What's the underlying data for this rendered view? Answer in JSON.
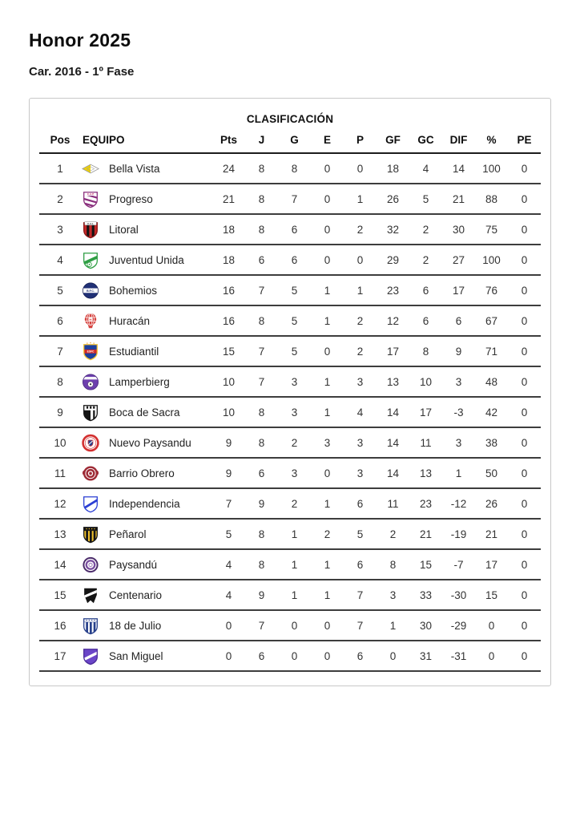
{
  "page": {
    "title": "Honor 2025",
    "subtitle": "Car. 2016 - 1º Fase"
  },
  "table": {
    "caption": "CLASIFICACIÓN",
    "columns": [
      "Pos",
      "EQUIPO",
      "Pts",
      "J",
      "G",
      "E",
      "P",
      "GF",
      "GC",
      "DIF",
      "%",
      "PE"
    ],
    "rows": [
      {
        "pos": 1,
        "team": "Bella Vista",
        "crest": {
          "icon": "bella-vista-crest-icon",
          "shape": "diamond",
          "colors": [
            "#f2d400",
            "#ffffff",
            "#9a9a9a"
          ]
        },
        "pts": 24,
        "j": 8,
        "g": 8,
        "e": 0,
        "p": 0,
        "gf": 18,
        "gc": 4,
        "dif": 14,
        "pct": 100,
        "pe": 0
      },
      {
        "pos": 2,
        "team": "Progreso",
        "crest": {
          "icon": "progreso-crest-icon",
          "shape": "shield-diag-stripes",
          "colors": [
            "#ffffff",
            "#8a2f7d",
            "#c2185b"
          ],
          "text": "C.A.P"
        },
        "pts": 21,
        "j": 8,
        "g": 7,
        "e": 0,
        "p": 1,
        "gf": 26,
        "gc": 5,
        "dif": 21,
        "pct": 88,
        "pe": 0
      },
      {
        "pos": 3,
        "team": "Litoral",
        "crest": {
          "icon": "litoral-crest-icon",
          "shape": "shield-vstripes-banner",
          "colors": [
            "#c62828",
            "#141414",
            "#ffffff",
            "#8c1515"
          ],
          "text": "C.A.L"
        },
        "pts": 18,
        "j": 8,
        "g": 6,
        "e": 0,
        "p": 2,
        "gf": 32,
        "gc": 2,
        "dif": 30,
        "pct": 75,
        "pe": 0
      },
      {
        "pos": 4,
        "team": "Juventud Unida",
        "crest": {
          "icon": "juventud-unida-crest-icon",
          "shape": "shield-ball",
          "colors": [
            "#ffffff",
            "#2f9e44"
          ]
        },
        "pts": 18,
        "j": 6,
        "g": 6,
        "e": 0,
        "p": 0,
        "gf": 29,
        "gc": 2,
        "dif": 27,
        "pct": 100,
        "pe": 0
      },
      {
        "pos": 5,
        "team": "Bohemios",
        "crest": {
          "icon": "bohemios-crest-icon",
          "shape": "circle-band",
          "colors": [
            "#203075",
            "#ffffff"
          ],
          "text": "B.F.C."
        },
        "pts": 16,
        "j": 7,
        "g": 5,
        "e": 1,
        "p": 1,
        "gf": 23,
        "gc": 6,
        "dif": 17,
        "pct": 76,
        "pe": 0
      },
      {
        "pos": 6,
        "team": "Huracán",
        "crest": {
          "icon": "huracan-crest-icon",
          "shape": "balloon",
          "colors": [
            "#d64541",
            "#ffffff"
          ],
          "text": "H"
        },
        "pts": 16,
        "j": 8,
        "g": 5,
        "e": 1,
        "p": 2,
        "gf": 12,
        "gc": 6,
        "dif": 6,
        "pct": 67,
        "pe": 0
      },
      {
        "pos": 7,
        "team": "Estudiantil",
        "crest": {
          "icon": "estudiantil-crest-icon",
          "shape": "shield-chief-band",
          "colors": [
            "#1c3f9e",
            "#f2c438",
            "#cf2a2a"
          ],
          "text": "ESFC"
        },
        "pts": 15,
        "j": 7,
        "g": 5,
        "e": 0,
        "p": 2,
        "gf": 17,
        "gc": 8,
        "dif": 9,
        "pct": 71,
        "pe": 0
      },
      {
        "pos": 8,
        "team": "Lamperbierg",
        "crest": {
          "icon": "lamperbierg-crest-icon",
          "shape": "circle-ball",
          "colors": [
            "#6d3fae",
            "#ffffff"
          ]
        },
        "pts": 10,
        "j": 7,
        "g": 3,
        "e": 1,
        "p": 3,
        "gf": 13,
        "gc": 10,
        "dif": 3,
        "pct": 48,
        "pe": 0
      },
      {
        "pos": 9,
        "team": "Boca de Sacra",
        "crest": {
          "icon": "boca-de-sacra-crest-icon",
          "shape": "shield-split",
          "colors": [
            "#ffffff",
            "#141414"
          ]
        },
        "pts": 10,
        "j": 8,
        "g": 3,
        "e": 1,
        "p": 4,
        "gf": 14,
        "gc": 17,
        "dif": -3,
        "pct": 42,
        "pe": 0
      },
      {
        "pos": 10,
        "team": "Nuevo Paysandu",
        "crest": {
          "icon": "nuevo-paysandu-crest-icon",
          "shape": "ring-shield",
          "colors": [
            "#d32f2f",
            "#ffffff",
            "#27408b"
          ]
        },
        "pts": 9,
        "j": 8,
        "g": 2,
        "e": 3,
        "p": 3,
        "gf": 14,
        "gc": 11,
        "dif": 3,
        "pct": 38,
        "pe": 0
      },
      {
        "pos": 11,
        "team": "Barrio Obrero",
        "crest": {
          "icon": "barrio-obrero-crest-icon",
          "shape": "circle-emblem",
          "colors": [
            "#9e2a35",
            "#ffffff"
          ]
        },
        "pts": 9,
        "j": 6,
        "g": 3,
        "e": 0,
        "p": 3,
        "gf": 14,
        "gc": 13,
        "dif": 1,
        "pct": 50,
        "pe": 0
      },
      {
        "pos": 12,
        "team": "Independencia",
        "crest": {
          "icon": "independencia-crest-icon",
          "shape": "shield-diag-outline",
          "colors": [
            "#ffffff",
            "#2b3fd4"
          ]
        },
        "pts": 7,
        "j": 9,
        "g": 2,
        "e": 1,
        "p": 6,
        "gf": 11,
        "gc": 23,
        "dif": -12,
        "pct": 26,
        "pe": 0
      },
      {
        "pos": 13,
        "team": "Peñarol",
        "crest": {
          "icon": "penarol-crest-icon",
          "shape": "shield-stripes-chief",
          "colors": [
            "#f0c22e",
            "#141414",
            "#141414",
            "#f0c22e",
            "#141414"
          ]
        },
        "pts": 5,
        "j": 8,
        "g": 1,
        "e": 2,
        "p": 5,
        "gf": 2,
        "gc": 21,
        "dif": -19,
        "pct": 21,
        "pe": 0
      },
      {
        "pos": 14,
        "team": "Paysandú",
        "crest": {
          "icon": "paysandu-crest-icon",
          "shape": "circle-rings",
          "colors": [
            "#4a2a6a",
            "#ffffff",
            "#7a4fa0"
          ]
        },
        "pts": 4,
        "j": 8,
        "g": 1,
        "e": 1,
        "p": 6,
        "gf": 8,
        "gc": 15,
        "dif": -7,
        "pct": 17,
        "pe": 0
      },
      {
        "pos": 15,
        "team": "Centenario",
        "crest": {
          "icon": "centenario-crest-icon",
          "shape": "pennant-band",
          "colors": [
            "#141414",
            "#ffffff"
          ]
        },
        "pts": 4,
        "j": 9,
        "g": 1,
        "e": 1,
        "p": 7,
        "gf": 3,
        "gc": 33,
        "dif": -30,
        "pct": 15,
        "pe": 0
      },
      {
        "pos": 16,
        "team": "18 de Julio",
        "crest": {
          "icon": "dieciocho-de-julio-crest-icon",
          "shape": "shield-stripes-chief",
          "colors": [
            "#ffffff",
            "#27408b",
            "#ffffff",
            "#27408b",
            "#27408b"
          ]
        },
        "pts": 0,
        "j": 7,
        "g": 0,
        "e": 0,
        "p": 7,
        "gf": 1,
        "gc": 30,
        "dif": -29,
        "pct": 0,
        "pe": 0
      },
      {
        "pos": 17,
        "team": "San Miguel",
        "crest": {
          "icon": "san-miguel-crest-icon",
          "shape": "shield-diag-band",
          "colors": [
            "#6b46c8",
            "#ffffff",
            "#4a2a9a"
          ]
        },
        "pts": 0,
        "j": 6,
        "g": 0,
        "e": 0,
        "p": 6,
        "gf": 0,
        "gc": 31,
        "dif": -31,
        "pct": 0,
        "pe": 0
      }
    ]
  }
}
